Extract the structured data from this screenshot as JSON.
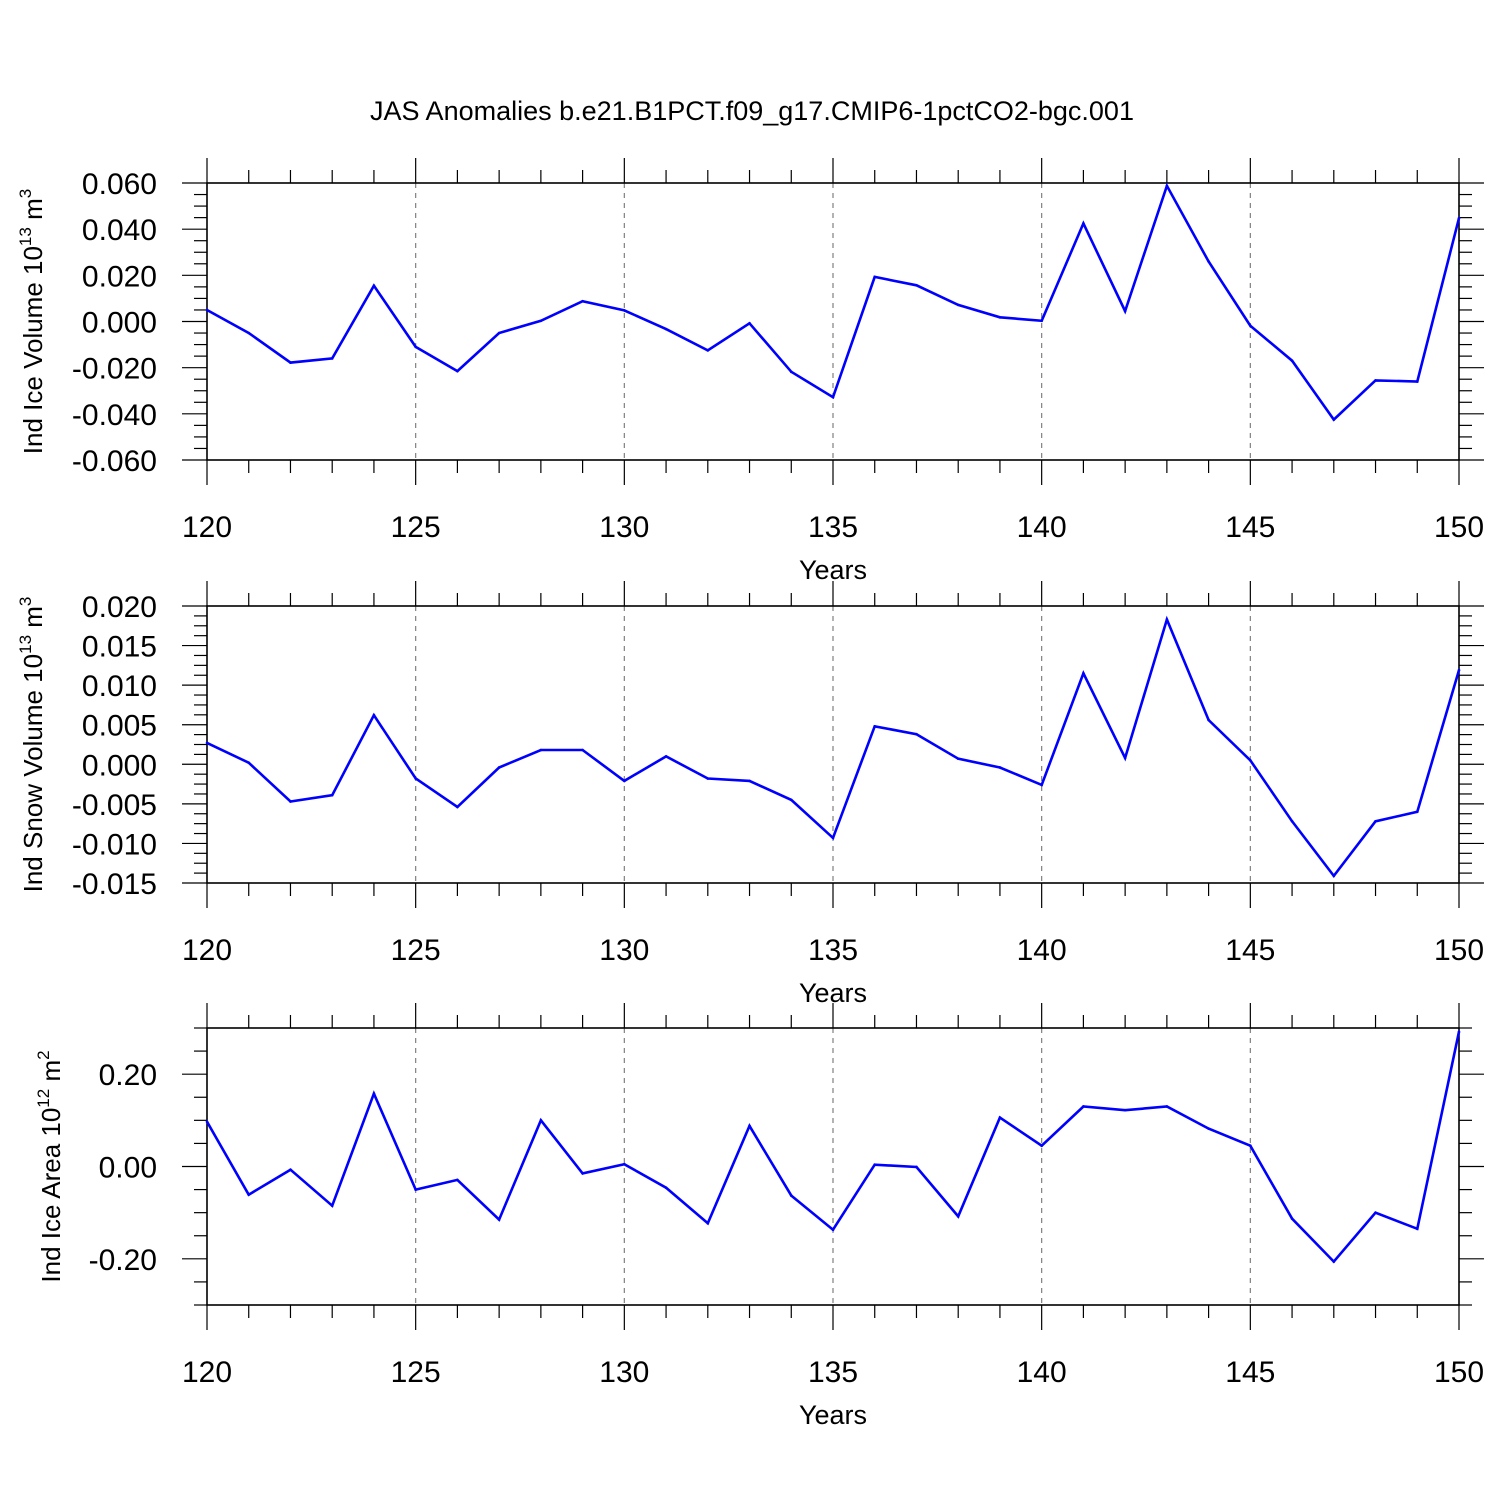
{
  "title": "JAS Anomalies b.e21.B1PCT.f09_g17.CMIP6-1pctCO2-bgc.001",
  "colors": {
    "line": "#0000ff",
    "frame": "#000000",
    "grid": "#808080"
  },
  "chart_data": [
    {
      "type": "line",
      "xlabel": "Years",
      "ylabel": {
        "text": "Ind Ice Volume 10",
        "exp": "13",
        "unit": " m",
        "unit_exp": "3"
      },
      "xlim": [
        120,
        150
      ],
      "ylim": [
        -0.06,
        0.06
      ],
      "x_ticks": [
        "120",
        "125",
        "130",
        "135",
        "140",
        "145",
        "150"
      ],
      "y_ticks": [
        -0.06,
        -0.04,
        -0.02,
        0.0,
        0.02,
        0.04,
        0.06
      ],
      "y_tick_labels": [
        "-0.060",
        "-0.040",
        "-0.020",
        "0.000",
        "0.020",
        "0.040",
        "0.060"
      ],
      "vertical_grid": [
        125,
        130,
        135,
        140,
        145
      ],
      "x": [
        120,
        121,
        122,
        123,
        124,
        125,
        126,
        127,
        128,
        129,
        130,
        131,
        132,
        133,
        134,
        135,
        136,
        137,
        138,
        139,
        140,
        141,
        142,
        143,
        144,
        145,
        146,
        147,
        148,
        149,
        150
      ],
      "values": [
        0.005,
        -0.005,
        -0.0178,
        -0.016,
        0.0155,
        -0.011,
        -0.0215,
        -0.005,
        0.0003,
        0.0088,
        0.0048,
        -0.0033,
        -0.0125,
        -0.0008,
        -0.0218,
        -0.0328,
        0.0193,
        0.0157,
        0.0072,
        0.0018,
        0.0003,
        0.0425,
        0.0045,
        0.0588,
        0.026,
        -0.0018,
        -0.017,
        -0.0425,
        -0.0255,
        -0.026,
        0.0448
      ]
    },
    {
      "type": "line",
      "xlabel": "Years",
      "ylabel": {
        "text": "Ind Snow Volume 10",
        "exp": "13",
        "unit": " m",
        "unit_exp": "3"
      },
      "xlim": [
        120,
        150
      ],
      "ylim": [
        -0.015,
        0.02
      ],
      "x_ticks": [
        "120",
        "125",
        "130",
        "135",
        "140",
        "145",
        "150"
      ],
      "y_ticks": [
        -0.015,
        -0.01,
        -0.005,
        0.0,
        0.005,
        0.01,
        0.015,
        0.02
      ],
      "y_tick_labels": [
        "-0.015",
        "-0.010",
        "-0.005",
        "0.000",
        "0.005",
        "0.010",
        "0.015",
        "0.020"
      ],
      "vertical_grid": [
        125,
        130,
        135,
        140,
        145
      ],
      "x": [
        120,
        121,
        122,
        123,
        124,
        125,
        126,
        127,
        128,
        129,
        130,
        131,
        132,
        133,
        134,
        135,
        136,
        137,
        138,
        139,
        140,
        141,
        142,
        143,
        144,
        145,
        146,
        147,
        148,
        149,
        150
      ],
      "values": [
        0.0027,
        0.0002,
        -0.0047,
        -0.0039,
        0.0062,
        -0.0018,
        -0.0054,
        -0.0004,
        0.0018,
        0.0018,
        -0.0021,
        0.001,
        -0.0018,
        -0.0021,
        -0.0045,
        -0.0093,
        0.0048,
        0.0038,
        0.0007,
        -0.0004,
        -0.0026,
        0.0115,
        0.0008,
        0.0183,
        0.0056,
        0.0005,
        -0.0072,
        -0.0141,
        -0.0072,
        -0.006,
        0.0119
      ]
    },
    {
      "type": "line",
      "xlabel": "Years",
      "ylabel": {
        "text": "Ind Ice Area 10",
        "exp": "12",
        "unit": " m",
        "unit_exp": "2"
      },
      "xlim": [
        120,
        150
      ],
      "ylim": [
        -0.3,
        0.3
      ],
      "x_ticks": [
        "120",
        "125",
        "130",
        "135",
        "140",
        "145",
        "150"
      ],
      "y_ticks": [
        -0.2,
        0.0,
        0.2
      ],
      "y_tick_labels": [
        "-0.20",
        "0.00",
        "0.20"
      ],
      "vertical_grid": [
        125,
        130,
        135,
        140,
        145
      ],
      "x": [
        120,
        121,
        122,
        123,
        124,
        125,
        126,
        127,
        128,
        129,
        130,
        131,
        132,
        133,
        134,
        135,
        136,
        137,
        138,
        139,
        140,
        141,
        142,
        143,
        144,
        145,
        146,
        147,
        148,
        149,
        150
      ],
      "values": [
        0.097,
        -0.061,
        -0.007,
        -0.085,
        0.158,
        -0.05,
        -0.029,
        -0.115,
        0.1,
        -0.015,
        0.005,
        -0.046,
        -0.123,
        0.088,
        -0.063,
        -0.137,
        0.004,
        -0.001,
        -0.108,
        0.106,
        0.045,
        0.13,
        0.122,
        0.13,
        0.082,
        0.045,
        -0.113,
        -0.206,
        -0.1,
        -0.135,
        0.292
      ]
    }
  ]
}
